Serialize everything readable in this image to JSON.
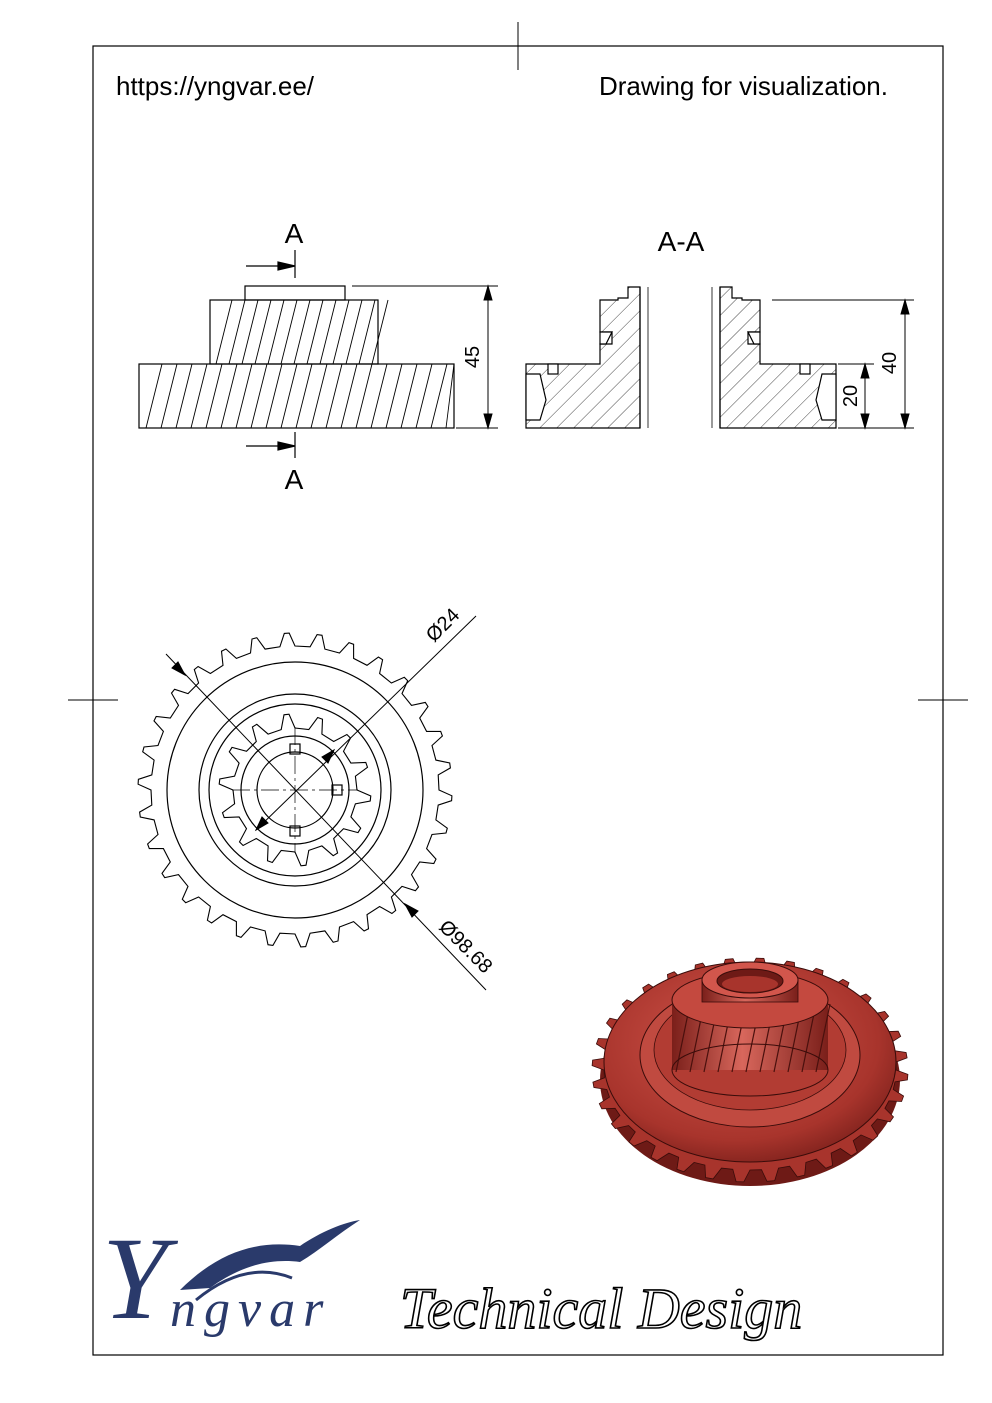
{
  "header": {
    "url": "https://yngvar.ee/",
    "note": "Drawing for visualization."
  },
  "views": {
    "front": {
      "section_mark_top": "A",
      "section_mark_bottom": "A",
      "dim_height": "45"
    },
    "section": {
      "title": "A-A",
      "dim_height": "40",
      "dim_flange": "20"
    },
    "top": {
      "dim_bore": "Ø24",
      "dim_outer": "Ø98.68"
    }
  },
  "logo": {
    "brand_initial": "Y",
    "brand_rest": "ngvar",
    "tagline": "Technical Design",
    "brand_color": "#2a3a6b"
  },
  "colors": {
    "render_main": "#a8342c",
    "render_light": "#d2564c",
    "render_dark": "#6e1a16"
  }
}
